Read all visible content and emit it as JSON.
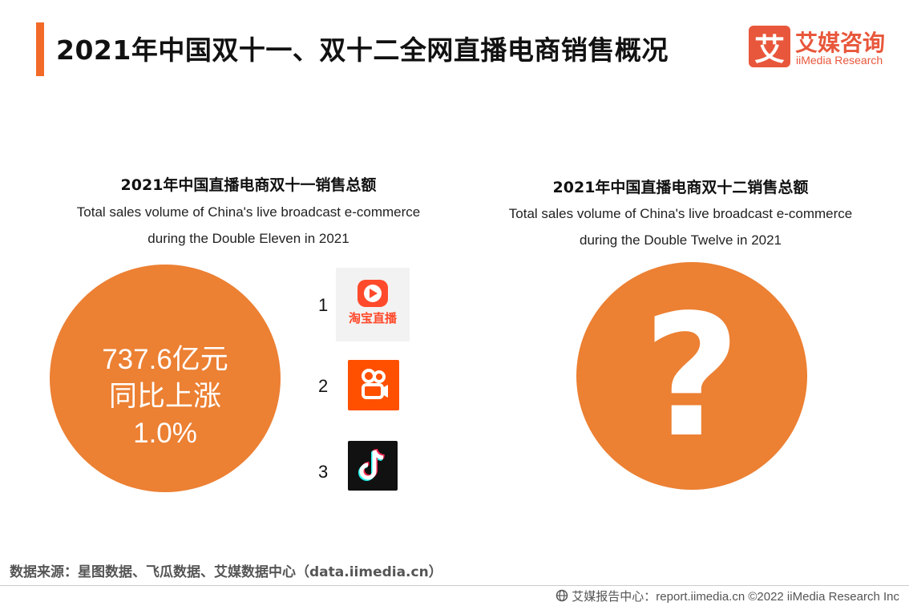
{
  "header": {
    "title": "2021年中国双十一、双十二全网直播电商销售概况",
    "logo_mark": "艾",
    "logo_cn": "艾媒咨询",
    "logo_en": "iiMedia Research"
  },
  "left_panel": {
    "title_cn": "2021年中国直播电商双十一销售总额",
    "subtitle_line1": "Total sales volume of China's live broadcast e-commerce",
    "subtitle_line2": "during the Double Eleven in 2021",
    "circle_line1": "737.6亿元",
    "circle_line2": "同比上涨",
    "circle_line3": "1.0%",
    "ranking": [
      {
        "rank": "1",
        "icon": "taobao-live-icon",
        "label": "淘宝直播"
      },
      {
        "rank": "2",
        "icon": "kuaishou-icon"
      },
      {
        "rank": "3",
        "icon": "douyin-icon"
      }
    ]
  },
  "right_panel": {
    "title_cn": "2021年中国直播电商双十二销售总额",
    "subtitle_line1": "Total sales volume of China's live broadcast e-commerce",
    "subtitle_line2": "during the Double Twelve in 2021",
    "circle_symbol": "?"
  },
  "footer": {
    "source": "数据来源：星图数据、飞瓜数据、艾媒数据中心（data.iimedia.cn）",
    "credit": "艾媒报告中心：report.iimedia.cn  ©2022  iiMedia Research  Inc"
  },
  "colors": {
    "accent": "#f26a2a",
    "circle": "#ec8033",
    "logo": "#e8573b",
    "taobao": "#ff4b2b",
    "kuaishou": "#ff5000"
  }
}
